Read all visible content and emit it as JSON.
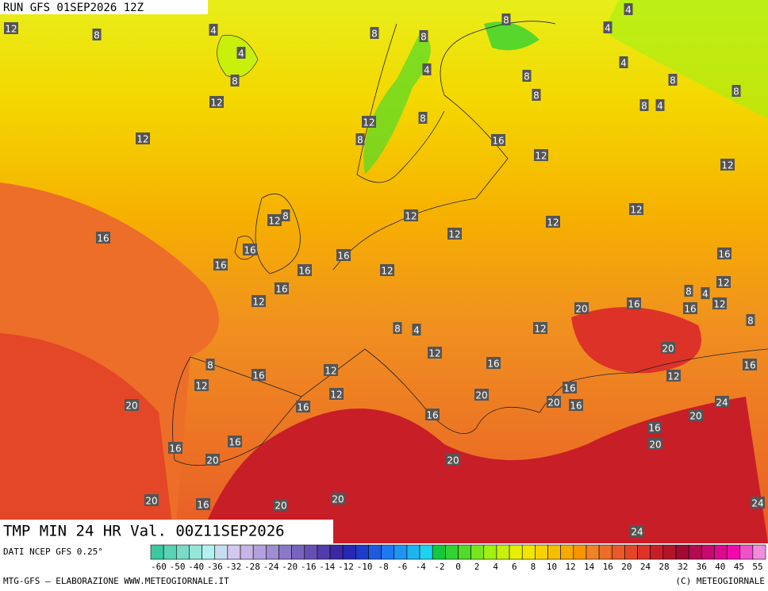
{
  "header": {
    "run": "RUN GFS 01SEP2026 12Z",
    "title": "TMP MIN 24 HR Val. 00Z11SEP2026"
  },
  "contour_labels": [
    12,
    8,
    4,
    4,
    8,
    8,
    8,
    8,
    4,
    4,
    4,
    8,
    4,
    8,
    8,
    8,
    8,
    4,
    12,
    12,
    8,
    12,
    8,
    16,
    12,
    12,
    8,
    12,
    12,
    12,
    12,
    16,
    16,
    12,
    16,
    16,
    12,
    12,
    16,
    8,
    12,
    4,
    16,
    12,
    16,
    20,
    16,
    12,
    16,
    8,
    8,
    4,
    12,
    12,
    20,
    8,
    16,
    12,
    16,
    16,
    12,
    12,
    20,
    16,
    20,
    20,
    16,
    20,
    16,
    24,
    16,
    20,
    16,
    16,
    16,
    20,
    20,
    20,
    16,
    20,
    20,
    24,
    24
  ],
  "legend": {
    "source": "DATI NCEP GFS 0.25°",
    "colors": [
      "#3cc8a0",
      "#5ad2b4",
      "#78dcc8",
      "#96e6dc",
      "#b4f0f0",
      "#c8dcf0",
      "#d2c8f0",
      "#c8b4e6",
      "#b4a0dc",
      "#a08cd2",
      "#8c78c8",
      "#7864be",
      "#6450b4",
      "#503caa",
      "#3c28a0",
      "#2828b4",
      "#1e3cc8",
      "#1e5adc",
      "#1e78f0",
      "#1e96f0",
      "#1eb4f0",
      "#1ed2f0",
      "#14c83c",
      "#32d232",
      "#50dc28",
      "#78e61e",
      "#a0f014",
      "#c8f00a",
      "#e6f000",
      "#f0e600",
      "#f6d200",
      "#f6be00",
      "#f6aa00",
      "#f69600",
      "#f08228",
      "#ec6e28",
      "#e85a28",
      "#e44628",
      "#dc3228",
      "#c81e28",
      "#b41428",
      "#a00a32",
      "#b40a50",
      "#c80a6e",
      "#dc0a8c",
      "#f00aaa",
      "#f050c8",
      "#f08cdc"
    ],
    "ticks": [
      -60,
      -50,
      -40,
      -36,
      -32,
      -28,
      -24,
      -20,
      -16,
      -14,
      -12,
      -10,
      -8,
      -6,
      -4,
      -2,
      0,
      2,
      4,
      6,
      8,
      10,
      12,
      14,
      16,
      20,
      24,
      28,
      32,
      36,
      40,
      45,
      55
    ]
  },
  "footer": {
    "credit": "MTG-GFS — ELABORAZIONE WWW.METEOGIORNALE.IT",
    "copyright": "(C) METEOGIORNALE"
  }
}
